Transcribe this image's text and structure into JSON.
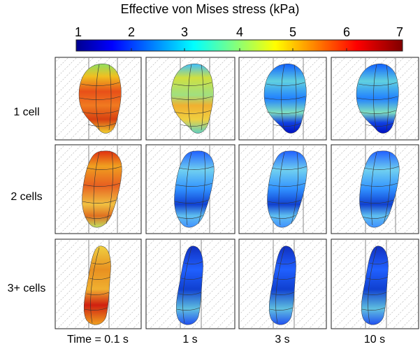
{
  "colorbar": {
    "title": "Effective von Mises stress (kPa)",
    "ticks": [
      "1",
      "2",
      "3",
      "4",
      "5",
      "6",
      "7"
    ],
    "min": 1,
    "max": 7
  },
  "rows": [
    {
      "label": "1 cell"
    },
    {
      "label": "2 cells"
    },
    {
      "label": "3+ cells"
    }
  ],
  "columns": [
    {
      "label": "Time = 0.1 s"
    },
    {
      "label": "1 s"
    },
    {
      "label": "3 s"
    },
    {
      "label": "10 s"
    }
  ]
}
